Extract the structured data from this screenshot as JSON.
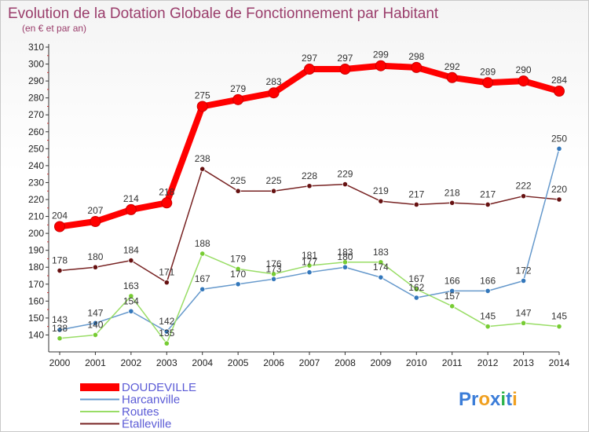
{
  "chart_data": {
    "type": "line",
    "title": "Evolution de la Dotation Globale de Fonctionnement par Habitant",
    "subtitle": "(en € et par an)",
    "x": [
      "2000",
      "2001",
      "2002",
      "2003",
      "2004",
      "2005",
      "2006",
      "2007",
      "2008",
      "2009",
      "2010",
      "2011",
      "2012",
      "2013",
      "2014"
    ],
    "ylim": [
      130,
      310
    ],
    "yticks": [
      140,
      150,
      160,
      170,
      180,
      190,
      200,
      210,
      220,
      230,
      240,
      250,
      260,
      270,
      280,
      290,
      300,
      310
    ],
    "grid": false,
    "legend_position": "bottom-left",
    "series": [
      {
        "name": "DOUDEVILLE",
        "color": "#ff0000",
        "marker": "#ff0000",
        "values": [
          204,
          207,
          214,
          218,
          275,
          279,
          283,
          297,
          297,
          299,
          298,
          292,
          289,
          290,
          284
        ]
      },
      {
        "name": "Harcanville",
        "color": "#6699cc",
        "marker": "#3377bb",
        "values": [
          143,
          147,
          154,
          142,
          167,
          170,
          173,
          177,
          180,
          174,
          162,
          166,
          166,
          172,
          250
        ]
      },
      {
        "name": "Routes",
        "color": "#99dd66",
        "marker": "#77cc33",
        "values": [
          138,
          140,
          163,
          135,
          188,
          179,
          176,
          181,
          183,
          183,
          167,
          157,
          145,
          147,
          145
        ]
      },
      {
        "name": "Étalleville",
        "color": "#772222",
        "marker": "#661111",
        "values": [
          178,
          180,
          184,
          171,
          238,
          225,
          225,
          228,
          229,
          219,
          217,
          218,
          217,
          222,
          220
        ]
      }
    ]
  },
  "branding": {
    "logo_text": "Proxiti",
    "logo_letters": [
      "P",
      "r",
      "o",
      "x",
      "i",
      "t",
      "i"
    ],
    "logo_colors": [
      "#3b7dd8",
      "#3b7dd8",
      "#f0a020",
      "#3b7dd8",
      "#2db34a",
      "#3b7dd8",
      "#f0a020"
    ]
  }
}
